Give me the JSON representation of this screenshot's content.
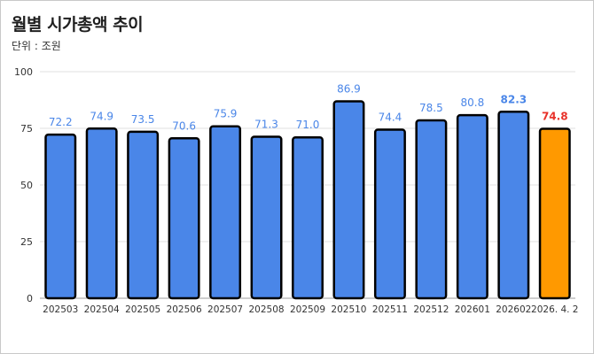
{
  "header": {
    "title": "월별 시가총액 추이",
    "subtitle": "단위 : 조원"
  },
  "colors": {
    "bar": "#4a86e8",
    "highlight_bar": "#ff9900",
    "bar_stroke": "#000000",
    "label": "#4a86e8",
    "highlight_label": "#e8322a",
    "grid": "#e2e2e2",
    "axis_text": "#333333"
  },
  "chart_data": {
    "type": "bar",
    "title": "월별 시가총액 추이",
    "subtitle": "단위 : 조원",
    "xlabel": "",
    "ylabel": "",
    "ylim": [
      0,
      100
    ],
    "yticks": [
      0,
      25,
      50,
      75,
      100
    ],
    "grid": true,
    "legend": "none",
    "categories": [
      "202503",
      "202504",
      "202505",
      "202506",
      "202507",
      "202508",
      "202509",
      "202510",
      "202511",
      "202512",
      "202601",
      "202602",
      "2026. 4. 2"
    ],
    "values": [
      72.2,
      74.9,
      73.5,
      70.6,
      75.9,
      71.3,
      71.0,
      86.9,
      74.4,
      78.5,
      80.8,
      82.3,
      74.8
    ],
    "value_labels": [
      "72.2",
      "74.9",
      "73.5",
      "70.6",
      "75.9",
      "71.3",
      "71.0",
      "86.9",
      "74.4",
      "78.5",
      "80.8",
      "82.3",
      "74.8"
    ],
    "bold_labels": [
      "82.3",
      "74.8"
    ],
    "highlight_category": "2026. 4. 2"
  }
}
